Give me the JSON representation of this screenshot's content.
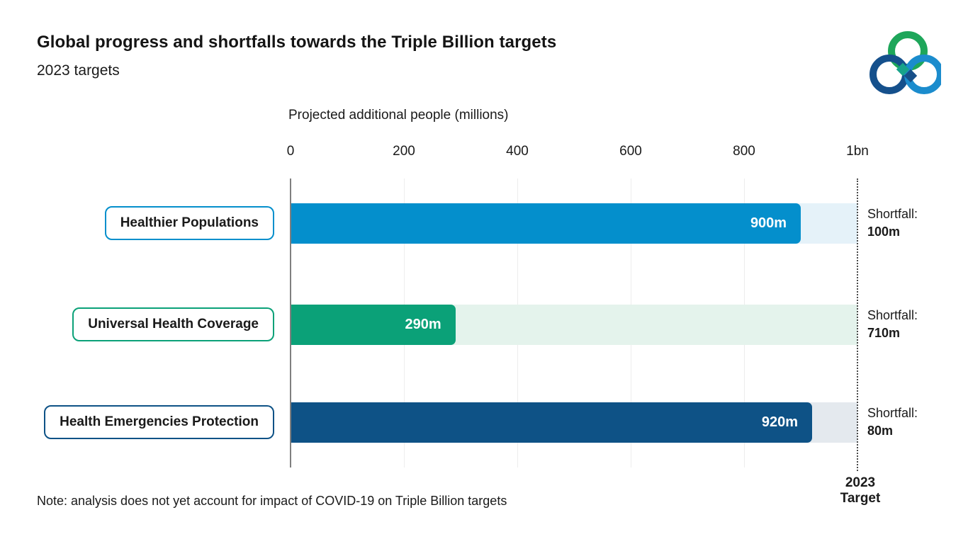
{
  "header": {
    "title": "Global progress and shortfalls towards the Triple Billion targets",
    "subtitle": "2023 targets"
  },
  "logo": {
    "name": "who-triple-billion-logo",
    "colors": {
      "green": "#1ea65a",
      "dark_blue": "#15508c",
      "light_blue": "#1b8ccd",
      "teal_diamond": "#18a38a",
      "navy_diamond": "#174f88"
    }
  },
  "note": "Note: analysis does not yet account for impact of COVID-19 on Triple Billion targets",
  "chart_data": {
    "type": "bar",
    "orientation": "horizontal",
    "axis_title": "Projected additional people (millions)",
    "x_ticks": [
      "0",
      "200",
      "400",
      "600",
      "800",
      "1bn"
    ],
    "x_tick_values": [
      0,
      200,
      400,
      600,
      800,
      1000
    ],
    "x_range": [
      0,
      1000
    ],
    "grid": true,
    "legend": false,
    "target": {
      "value": 1000,
      "label": "2023 Target"
    },
    "shortfall_prefix": "Shortfall:",
    "rows": [
      {
        "category": "Healthier Populations",
        "value": 900,
        "value_label": "900m",
        "shortfall": 100,
        "shortfall_label": "100m",
        "color": "#048fcc",
        "track_color": "#e5f2f9"
      },
      {
        "category": "Universal Health Coverage",
        "value": 290,
        "value_label": "290m",
        "shortfall": 710,
        "shortfall_label": "710m",
        "color": "#0ba178",
        "track_color": "#e4f3ec"
      },
      {
        "category": "Health Emergencies Protection",
        "value": 920,
        "value_label": "920m",
        "shortfall": 80,
        "shortfall_label": "80m",
        "color": "#0e5286",
        "track_color": "#e4e9ee"
      }
    ]
  }
}
